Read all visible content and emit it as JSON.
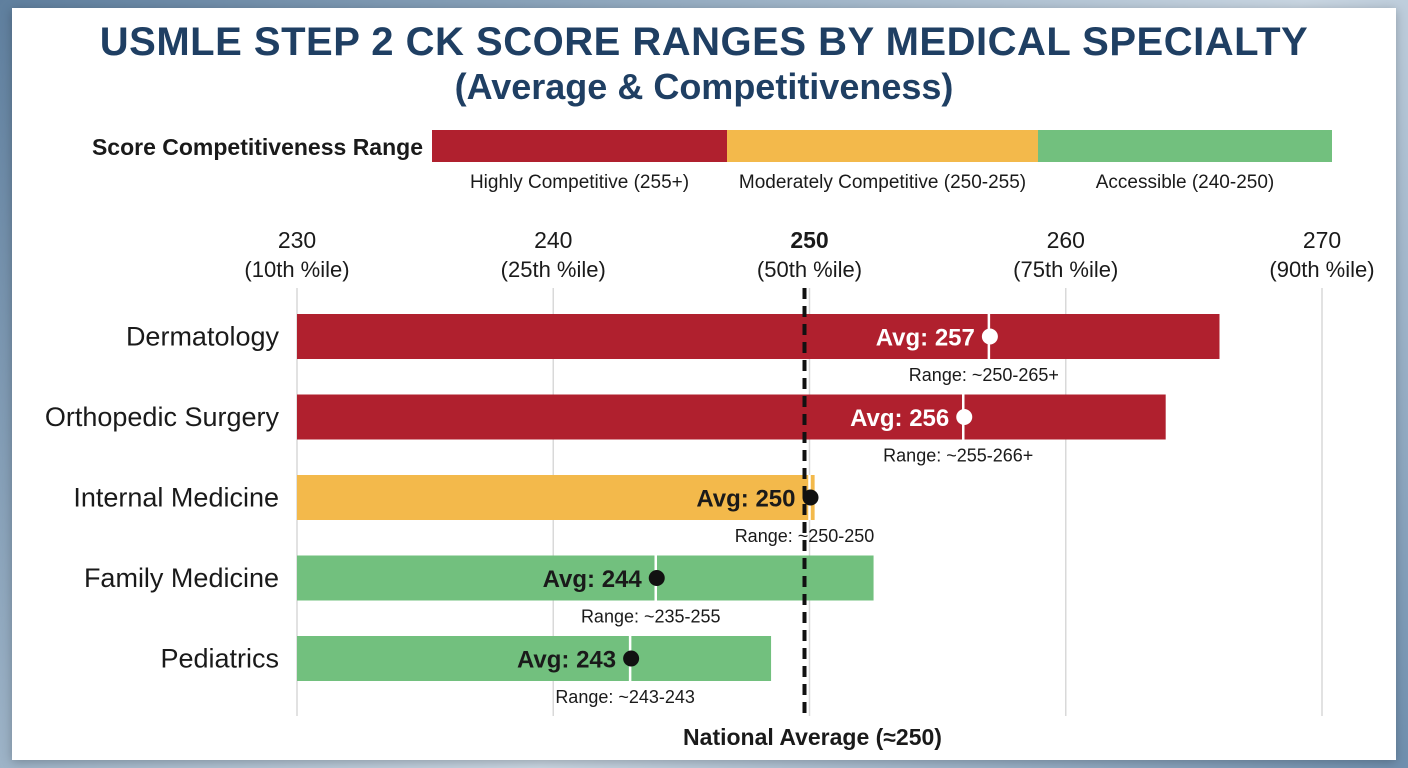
{
  "title": "USMLE STEP 2 CK SCORE RANGES BY MEDICAL SPECIALTY",
  "subtitle": "(Average & Competitiveness)",
  "legend": {
    "label": "Score Competitiveness Range",
    "items": [
      {
        "label": "Highly Competitive (255+)",
        "color": "#b0202e"
      },
      {
        "label": "Moderately Competitive (250-255)",
        "color": "#f3b94b"
      },
      {
        "label": "Accessible (240-250)",
        "color": "#72c07e"
      }
    ]
  },
  "chart_data": {
    "type": "bar",
    "orientation": "horizontal",
    "xlim": [
      230,
      270
    ],
    "ticks": [
      {
        "value": 230,
        "label": "230",
        "sublabel": "(10th %ile)"
      },
      {
        "value": 240,
        "label": "240",
        "sublabel": "(25th %ile)"
      },
      {
        "value": 250,
        "label": "250",
        "sublabel": "(50th %ile)",
        "bold": true
      },
      {
        "value": 260,
        "label": "260",
        "sublabel": "(75th %ile)"
      },
      {
        "value": 270,
        "label": "270",
        "sublabel": "(90th %ile)"
      }
    ],
    "categories": [
      "Dermatology",
      "Orthopedic Surgery",
      "Internal Medicine",
      "Family Medicine",
      "Pediatrics"
    ],
    "bar_end": [
      266,
      263.9,
      250.2,
      252.5,
      248.5
    ],
    "averages": [
      257,
      256,
      250,
      244,
      243
    ],
    "avg_labels": [
      "Avg: 257",
      "Avg: 256",
      "Avg: 250",
      "Avg: 244",
      "Avg: 243"
    ],
    "range_labels": [
      "Range: ~250-265+",
      "Range: ~255-266+",
      "Range: ~250-250",
      "Range: ~235-255",
      "Range: ~243-243"
    ],
    "colors": [
      "#b0202e",
      "#b0202e",
      "#f3b94b",
      "#72c07e",
      "#72c07e"
    ],
    "reference_line": {
      "value": 250,
      "label": "National Average (≈250)"
    },
    "grid": true
  }
}
